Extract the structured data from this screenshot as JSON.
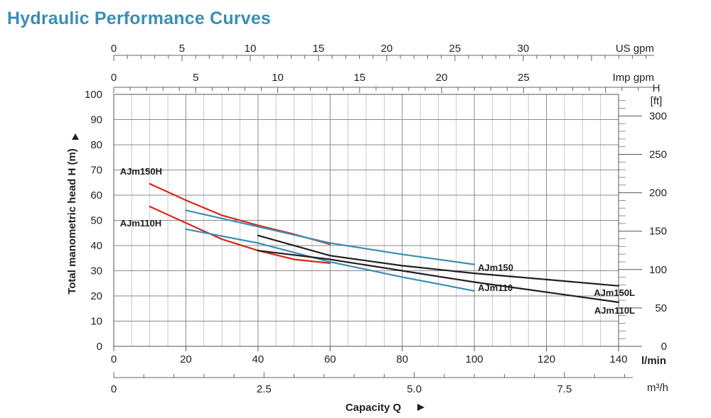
{
  "title": "Hydraulic Performance Curves",
  "chart_data": {
    "type": "line",
    "title": "Hydraulic Performance Curves",
    "xlabel": "Capacity Q",
    "ylabel": "Total manometric head H (m)",
    "xlim": [
      0,
      140
    ],
    "ylim": [
      0,
      100
    ],
    "grid": true,
    "x_ticks": [
      0,
      20,
      40,
      60,
      80,
      100,
      120,
      140
    ],
    "y_ticks": [
      0,
      10,
      20,
      30,
      40,
      50,
      60,
      70,
      80,
      90,
      100
    ],
    "x_unit": "l/min",
    "y_unit": "",
    "right_axis": {
      "label_line1": "H",
      "label_line2": "[ft]",
      "ticks": [
        0,
        50,
        100,
        150,
        200,
        250,
        300
      ],
      "factor_m_per_unit": 0.3048
    },
    "top_axes": [
      {
        "unit": "US gpm",
        "ticks": [
          0,
          5,
          10,
          15,
          20,
          25,
          30
        ],
        "lpm_per_unit": 3.785
      },
      {
        "unit": "Imp gpm",
        "ticks": [
          0,
          5,
          10,
          15,
          20,
          25
        ],
        "lpm_per_unit": 4.546
      }
    ],
    "bottom_axis_2": {
      "unit": "m³/h",
      "ticks": [
        "0",
        "2.5",
        "5.0",
        "7.5"
      ],
      "tick_values": [
        0,
        2.5,
        5.0,
        7.5
      ],
      "lpm_per_unit": 16.667
    },
    "series": [
      {
        "name": "AJm150H",
        "color": "#d9261c",
        "x": [
          10,
          20,
          30,
          40,
          50,
          60
        ],
        "y": [
          64.5,
          58,
          52,
          48,
          44.5,
          40.5
        ]
      },
      {
        "name": "AJm110H",
        "color": "#d9261c",
        "x": [
          10,
          20,
          30,
          40,
          50,
          60
        ],
        "y": [
          55.5,
          49,
          42.5,
          38,
          34.5,
          33
        ]
      },
      {
        "name": "AJm150",
        "color": "#3a8fb4",
        "x": [
          20,
          40,
          60,
          80,
          100
        ],
        "y": [
          54,
          47.5,
          41,
          36.5,
          32.5
        ]
      },
      {
        "name": "AJm110",
        "color": "#3a8fb4",
        "x": [
          20,
          40,
          60,
          80,
          100
        ],
        "y": [
          46.5,
          41,
          33.5,
          27.5,
          22
        ]
      },
      {
        "name": "AJm150L",
        "color": "#231f20",
        "x": [
          40,
          60,
          80,
          100,
          120,
          140
        ],
        "y": [
          44,
          36,
          32,
          29,
          26.5,
          24
        ]
      },
      {
        "name": "AJm110L",
        "color": "#231f20",
        "x": [
          40,
          60,
          80,
          100,
          120,
          140
        ],
        "y": [
          38,
          34.5,
          30,
          25.5,
          21.5,
          17.5
        ]
      }
    ],
    "curve_labels": [
      "AJm150H",
      "AJm110H",
      "AJm150",
      "AJm110",
      "AJm150L",
      "AJm110L"
    ]
  }
}
